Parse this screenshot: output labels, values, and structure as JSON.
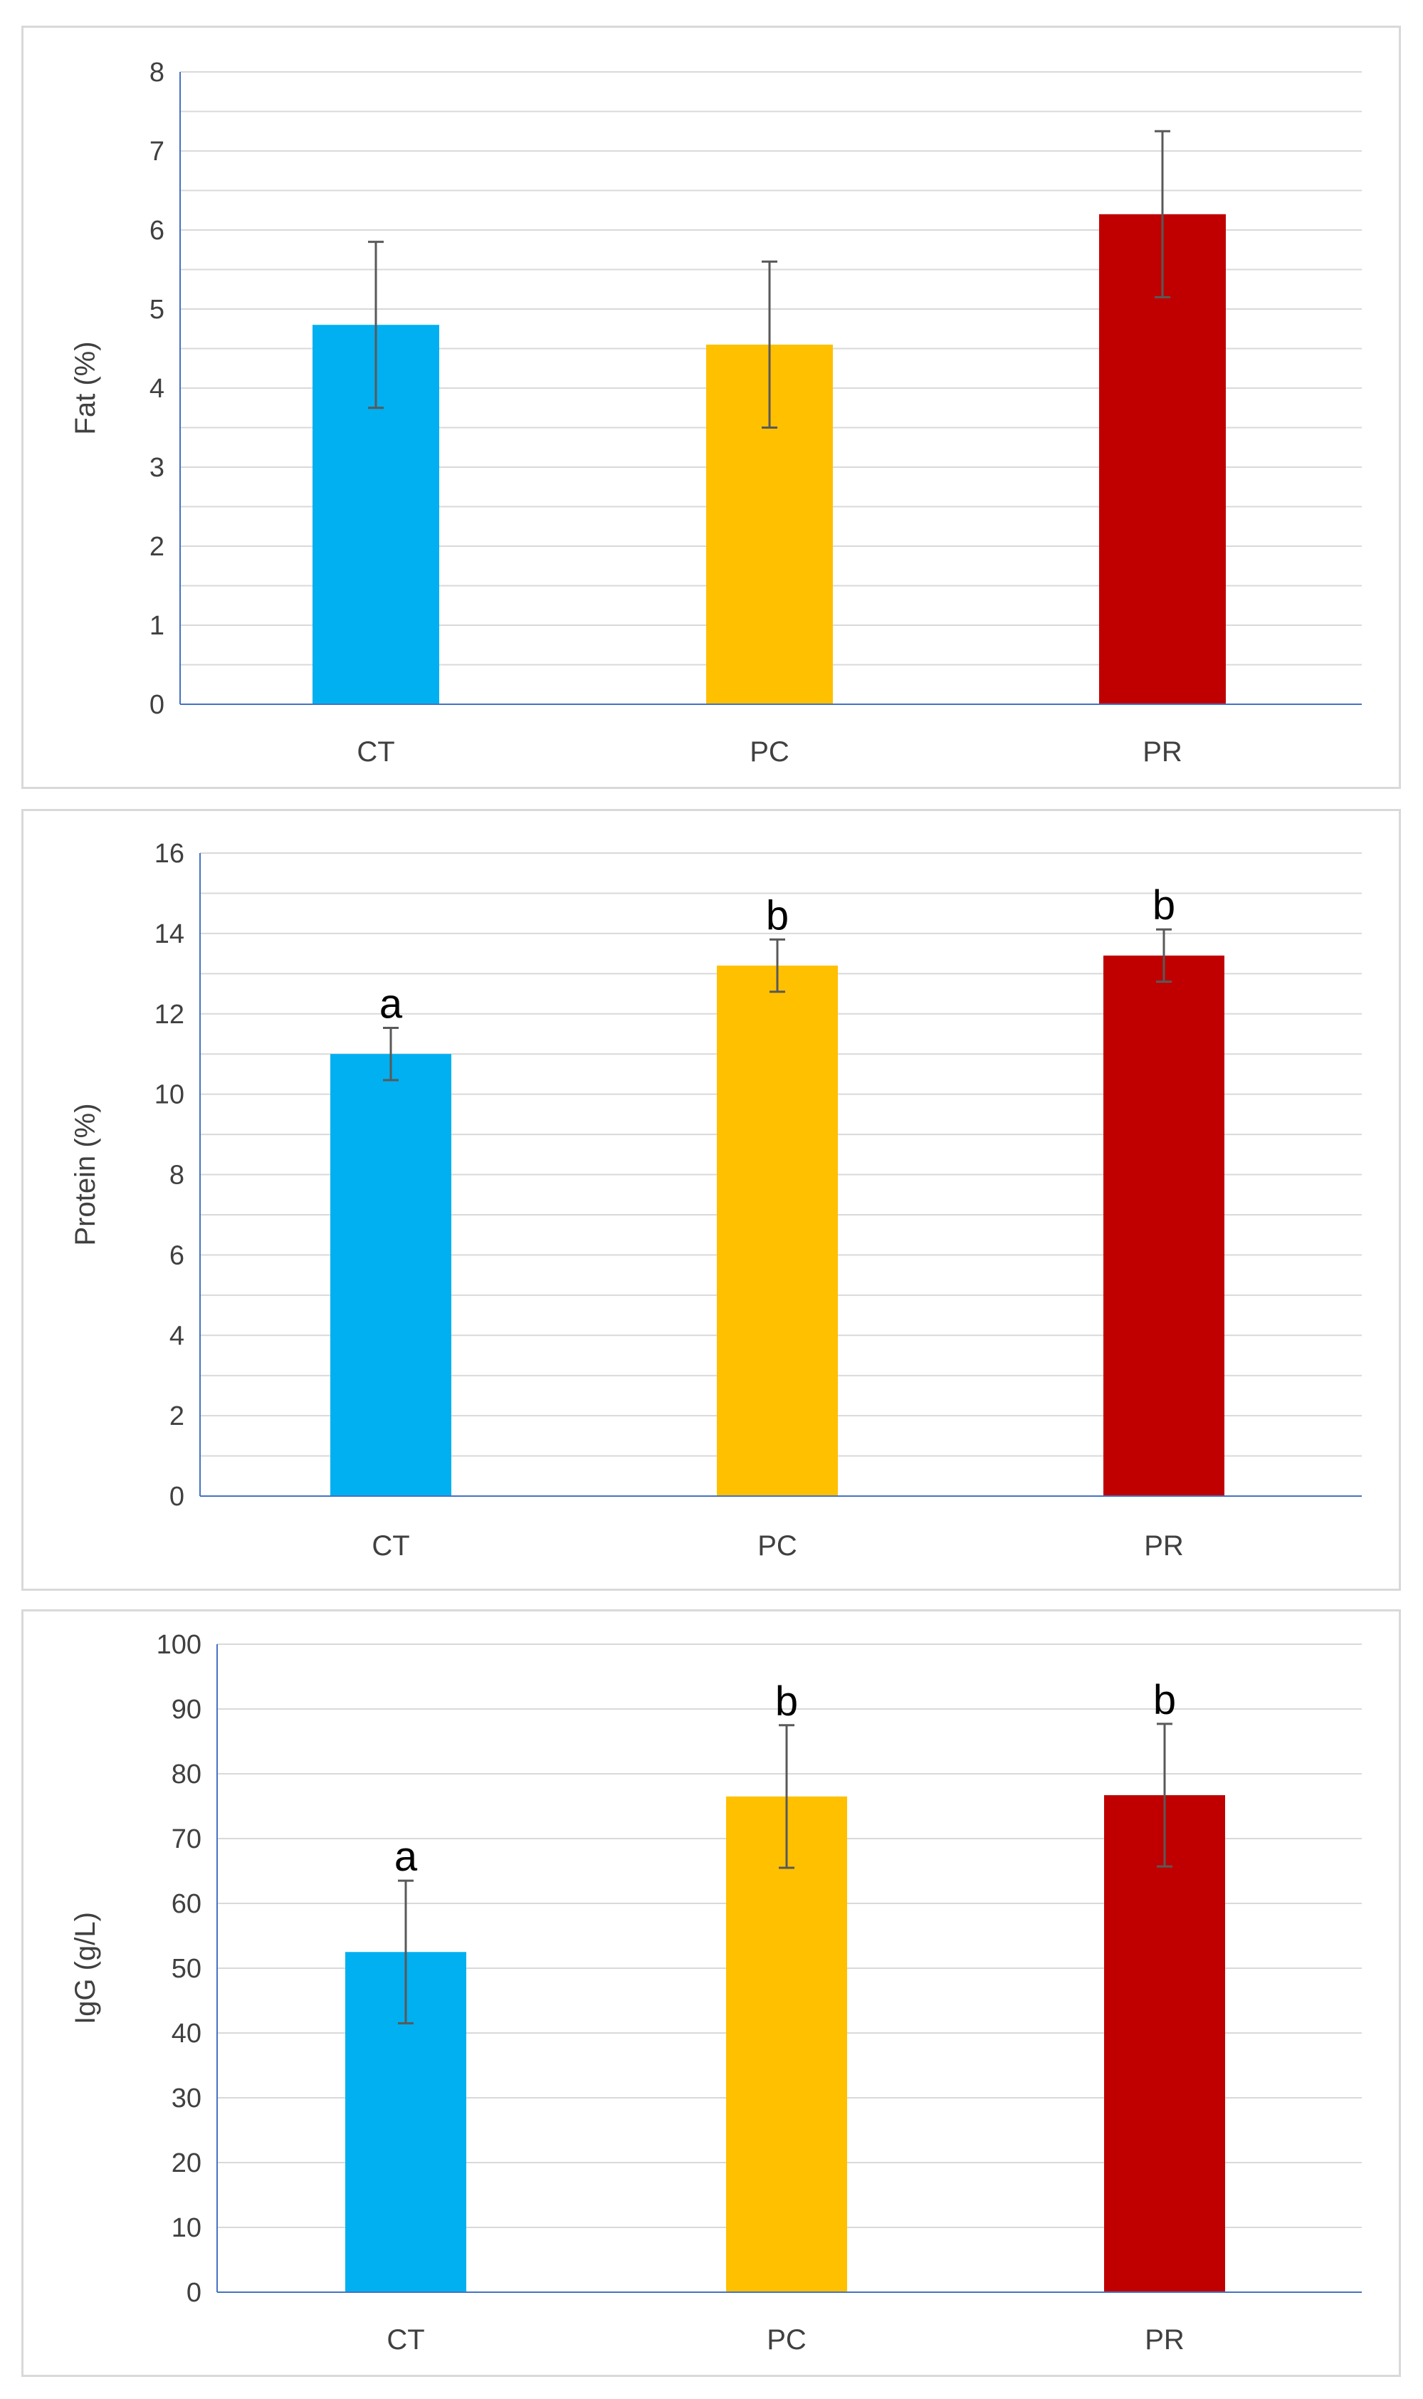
{
  "chart_data": [
    {
      "type": "bar",
      "categories": [
        "CT",
        "PC",
        "PR"
      ],
      "values": [
        4.8,
        4.55,
        6.2
      ],
      "errors": [
        1.05,
        1.05,
        1.05
      ],
      "significance": [
        "",
        "",
        ""
      ],
      "ylabel": "Fat (%)",
      "ylim": [
        0,
        8
      ],
      "yticks": [
        "0",
        "1",
        "2",
        "3",
        "4",
        "5",
        "6",
        "7",
        "8"
      ],
      "colors": [
        "#00b0f0",
        "#ffc000",
        "#c00000"
      ],
      "grid": "horizontal, minor gridlines every 0.5"
    },
    {
      "type": "bar",
      "categories": [
        "CT",
        "PC",
        "PR"
      ],
      "values": [
        11.0,
        13.2,
        13.45
      ],
      "errors": [
        0.65,
        0.65,
        0.65
      ],
      "significance": [
        "a",
        "b",
        "b"
      ],
      "ylabel": "Protein (%)",
      "ylim": [
        0,
        16
      ],
      "yticks": [
        "0",
        "2",
        "4",
        "6",
        "8",
        "10",
        "12",
        "14",
        "16"
      ],
      "colors": [
        "#00b0f0",
        "#ffc000",
        "#c00000"
      ],
      "grid": "horizontal, minor gridlines every 1"
    },
    {
      "type": "bar",
      "categories": [
        "CT",
        "PC",
        "PR"
      ],
      "values": [
        52.5,
        76.5,
        76.7
      ],
      "errors": [
        11,
        11,
        11
      ],
      "significance": [
        "a",
        "b",
        "b"
      ],
      "ylabel": "IgG (g/L)",
      "ylim": [
        0,
        100
      ],
      "yticks": [
        "0",
        "10",
        "20",
        "30",
        "40",
        "50",
        "60",
        "70",
        "80",
        "90",
        "100"
      ],
      "colors": [
        "#00b0f0",
        "#ffc000",
        "#c00000"
      ],
      "grid": "horizontal, every 10"
    }
  ]
}
